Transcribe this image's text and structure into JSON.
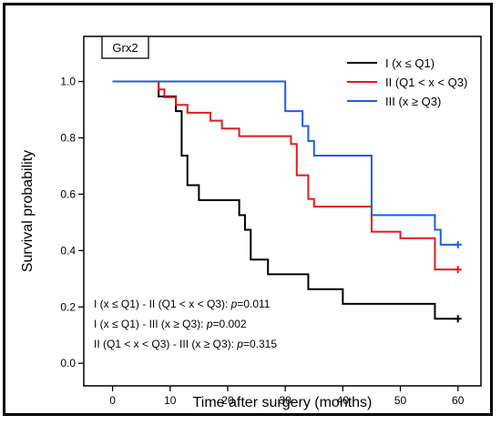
{
  "chart_data": {
    "type": "line",
    "subtype": "kaplan-meier step",
    "panel_label": "Grx2",
    "xlabel": "Time after surgery (months)",
    "ylabel": "Survival probability",
    "xlim": [
      -5,
      64
    ],
    "ylim": [
      -0.08,
      1.16
    ],
    "xticks": [
      0,
      10,
      20,
      30,
      40,
      50,
      60
    ],
    "xtick_labels": [
      "0",
      "10",
      "20",
      "30",
      "40",
      "50",
      "60"
    ],
    "yticks": [
      0.0,
      0.2,
      0.4,
      0.6,
      0.8,
      1.0
    ],
    "ytick_labels": [
      "0.0",
      "0.2",
      "0.4",
      "0.6",
      "0.8",
      "1.0"
    ],
    "grid": false,
    "legend_position": "top-right",
    "series": [
      {
        "name": "I (x ≤ Q1)",
        "color": "#000000",
        "x": [
          0,
          8,
          11,
          12,
          13,
          15,
          21,
          22,
          23,
          24,
          26,
          27,
          34,
          40,
          56,
          60
        ],
        "y": [
          1.0,
          0.947,
          0.895,
          0.737,
          0.632,
          0.579,
          0.579,
          0.526,
          0.474,
          0.368,
          0.368,
          0.316,
          0.263,
          0.211,
          0.158,
          0.158
        ],
        "censored": [
          [
            60,
            0.158
          ]
        ]
      },
      {
        "name": "II (Q1 < x < Q3)",
        "color": "#e41a1c",
        "x": [
          0,
          8,
          9,
          11,
          13,
          17,
          19,
          22,
          25,
          31,
          32,
          34,
          35,
          45,
          50,
          56,
          60
        ],
        "y": [
          1.0,
          0.972,
          0.944,
          0.917,
          0.889,
          0.861,
          0.833,
          0.806,
          0.806,
          0.778,
          0.667,
          0.583,
          0.556,
          0.467,
          0.444,
          0.333,
          0.333
        ],
        "censored": [
          [
            60,
            0.333
          ]
        ]
      },
      {
        "name": "III (x ≥ Q3)",
        "color": "#1f5fd6",
        "x": [
          0,
          30,
          33,
          34,
          35,
          45,
          56,
          57,
          60
        ],
        "y": [
          1.0,
          0.895,
          0.842,
          0.789,
          0.737,
          0.526,
          0.474,
          0.421,
          0.421
        ],
        "censored": [
          [
            60,
            0.421
          ]
        ]
      }
    ],
    "annotations": [
      {
        "prefix": "I (x ≤ Q1) - II (Q1 < x < Q3): ",
        "p_label": "p",
        "p_value": "=0.011"
      },
      {
        "prefix": "I (x ≤ Q1) - III (x ≥ Q3): ",
        "p_label": "p",
        "p_value": "=0.002"
      },
      {
        "prefix": "II (Q1 < x < Q3) - III (x ≥ Q3): ",
        "p_label": "p",
        "p_value": "=0.315"
      }
    ]
  }
}
